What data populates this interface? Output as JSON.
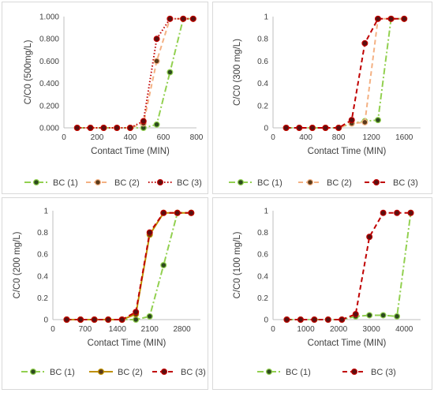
{
  "chart_data": [
    {
      "type": "line",
      "xlabel": "Contact Time (MIN)",
      "ylabel": "C/C0 (500mg/L)",
      "xlim": [
        0,
        800
      ],
      "ylim": [
        0,
        1
      ],
      "xticks": [
        "0",
        "200",
        "400",
        "600",
        "800"
      ],
      "yticks": [
        "0.000",
        "0.200",
        "0.400",
        "0.600",
        "0.800",
        "1.000"
      ],
      "grid": false,
      "legend_position": "bottom",
      "series": [
        {
          "name": "BC (1)",
          "color": "#92d050",
          "line_style": "dash-dot",
          "marker_fill": "#2d4a1e",
          "x": [
            80,
            160,
            240,
            320,
            400,
            480,
            560,
            640,
            720,
            780
          ],
          "y": [
            0,
            0,
            0,
            0,
            0,
            0,
            0.03,
            0.5,
            0.98,
            0.98
          ]
        },
        {
          "name": "BC (2)",
          "color": "#f4b183",
          "line_style": "dash",
          "marker_fill": "#5a3a1a",
          "x": [
            80,
            160,
            240,
            320,
            400,
            480,
            560,
            640,
            720,
            780
          ],
          "y": [
            0,
            0,
            0,
            0,
            0,
            0.04,
            0.6,
            0.98,
            0.98,
            0.98
          ]
        },
        {
          "name": "BC (3)",
          "color": "#c00000",
          "line_style": "dot",
          "marker_fill": "#5a1010",
          "x": [
            80,
            160,
            240,
            320,
            400,
            480,
            560,
            640,
            720,
            780
          ],
          "y": [
            0,
            0,
            0,
            0,
            0,
            0.06,
            0.8,
            0.98,
            0.98,
            0.98
          ]
        }
      ]
    },
    {
      "type": "line",
      "xlabel": "Contact Time (MIN)",
      "ylabel": "C/C0 (300 mg/L)",
      "xlim": [
        0,
        1800
      ],
      "ylim": [
        0,
        1
      ],
      "xticks": [
        "0",
        "400",
        "800",
        "1200",
        "1600"
      ],
      "yticks": [
        "0",
        "0.2",
        "0.4",
        "0.6",
        "0.8",
        "1"
      ],
      "grid": false,
      "legend_position": "bottom",
      "series": [
        {
          "name": "BC (1)",
          "color": "#92d050",
          "line_style": "dash-dot",
          "marker_fill": "#2d4a1e",
          "x": [
            160,
            320,
            480,
            640,
            800,
            960,
            1120,
            1280,
            1440,
            1600
          ],
          "y": [
            0,
            0,
            0,
            0,
            0,
            0.04,
            0.06,
            0.07,
            0.98,
            0.98
          ]
        },
        {
          "name": "BC (2)",
          "color": "#f4b183",
          "line_style": "dash",
          "marker_fill": "#5a3a1a",
          "x": [
            160,
            320,
            480,
            640,
            800,
            960,
            1120,
            1280,
            1440,
            1600
          ],
          "y": [
            0,
            0,
            0,
            0,
            0,
            0.04,
            0.05,
            0.98,
            0.98,
            0.98
          ]
        },
        {
          "name": "BC (3)",
          "color": "#c00000",
          "line_style": "dash",
          "marker_fill": "#5a1010",
          "x": [
            160,
            320,
            480,
            640,
            800,
            960,
            1120,
            1280,
            1440,
            1600
          ],
          "y": [
            0,
            0,
            0,
            0,
            0,
            0.07,
            0.76,
            0.98,
            0.98,
            0.98
          ]
        }
      ]
    },
    {
      "type": "line",
      "xlabel": "Contact Time (MIN)",
      "ylabel": "C/C0 (200 mg/L)",
      "xlim": [
        0,
        3200
      ],
      "ylim": [
        0,
        1
      ],
      "xticks": [
        "0",
        "700",
        "1400",
        "2100",
        "2800"
      ],
      "yticks": [
        "0",
        "0.2",
        "0.4",
        "0.6",
        "0.8",
        "1"
      ],
      "grid": false,
      "legend_position": "bottom",
      "series": [
        {
          "name": "BC (1)",
          "color": "#92d050",
          "line_style": "dash-dot",
          "marker_fill": "#2d4a1e",
          "x": [
            300,
            600,
            900,
            1200,
            1500,
            1800,
            2100,
            2400,
            2700,
            3000
          ],
          "y": [
            0,
            0,
            0,
            0,
            0,
            0,
            0.03,
            0.5,
            0.98,
            0.98
          ]
        },
        {
          "name": "BC (2)",
          "color": "#bf9000",
          "line_style": "solid",
          "marker_fill": "#5a3a1a",
          "x": [
            300,
            600,
            900,
            1200,
            1500,
            1800,
            2100,
            2400,
            2700,
            3000
          ],
          "y": [
            0,
            0,
            0,
            0,
            0,
            0.05,
            0.78,
            0.98,
            0.98,
            0.98
          ]
        },
        {
          "name": "BC (3)",
          "color": "#c00000",
          "line_style": "dash",
          "marker_fill": "#5a1010",
          "x": [
            300,
            600,
            900,
            1200,
            1500,
            1800,
            2100,
            2400,
            2700,
            3000
          ],
          "y": [
            0,
            0,
            0,
            0,
            0,
            0.07,
            0.8,
            0.98,
            0.98,
            0.98
          ]
        }
      ]
    },
    {
      "type": "line",
      "xlabel": "Contact Time (MIN)",
      "ylabel": "C/C0 (100 mg/L)",
      "xlim": [
        0,
        4500
      ],
      "ylim": [
        0,
        1
      ],
      "xticks": [
        "0",
        "1000",
        "2000",
        "3000",
        "4000"
      ],
      "yticks": [
        "0",
        "0.2",
        "0.4",
        "0.6",
        "0.8",
        "1"
      ],
      "grid": false,
      "legend_position": "bottom",
      "series": [
        {
          "name": "BC (1)",
          "color": "#92d050",
          "line_style": "dash-dot",
          "marker_fill": "#2d4a1e",
          "x": [
            420,
            840,
            1260,
            1680,
            2100,
            2520,
            2940,
            3360,
            3780,
            4200
          ],
          "y": [
            0,
            0,
            0,
            0,
            0,
            0.03,
            0.04,
            0.04,
            0.03,
            0.98
          ]
        },
        {
          "name": "BC (3)",
          "color": "#c00000",
          "line_style": "dash",
          "marker_fill": "#5a1010",
          "x": [
            420,
            840,
            1260,
            1680,
            2100,
            2520,
            2940,
            3360,
            3780,
            4200
          ],
          "y": [
            0,
            0,
            0,
            0,
            0,
            0.05,
            0.76,
            0.98,
            0.98,
            0.98
          ]
        }
      ]
    }
  ]
}
